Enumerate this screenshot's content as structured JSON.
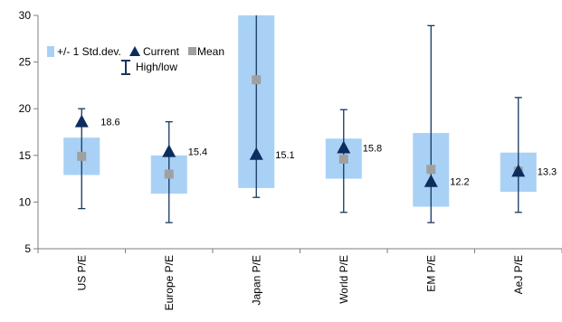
{
  "chart_data": {
    "type": "box",
    "categories": [
      "US P/E",
      "Europe P/E",
      "Japan P/E",
      "World P/E",
      "EM P/E",
      "AeJ P/E"
    ],
    "series": [
      {
        "name": "+/- 1 Std.dev.",
        "low": [
          12.9,
          10.9,
          11.5,
          12.5,
          9.5,
          11.1
        ],
        "high": [
          16.9,
          15.0,
          30.0,
          16.8,
          17.4,
          15.3
        ]
      },
      {
        "name": "Current",
        "values": [
          18.6,
          15.4,
          15.1,
          15.8,
          12.2,
          13.3
        ]
      },
      {
        "name": "Mean",
        "values": [
          14.9,
          13.0,
          23.1,
          14.6,
          13.5,
          13.3
        ]
      },
      {
        "name": "High/low",
        "low": [
          9.3,
          7.8,
          10.5,
          8.9,
          7.8,
          8.9
        ],
        "high": [
          20.0,
          18.6,
          30.0,
          19.9,
          28.9,
          21.2
        ]
      }
    ],
    "data_labels": [
      "18.6",
      "15.4",
      "15.1",
      "15.8",
      "12.2",
      "13.3"
    ],
    "ylim": [
      5,
      30
    ],
    "yticks": [
      5,
      10,
      15,
      20,
      25,
      30
    ],
    "ytick_labels": [
      "5",
      "10",
      "15",
      "20",
      "25",
      "30"
    ],
    "grid": false,
    "legend_position": "top-left",
    "colors": {
      "band": "#a9d1f5",
      "current": "#0d2d5e",
      "mean": "#a0a0a0",
      "whisker": "#17375e",
      "axis": "#7f7f7f"
    }
  }
}
